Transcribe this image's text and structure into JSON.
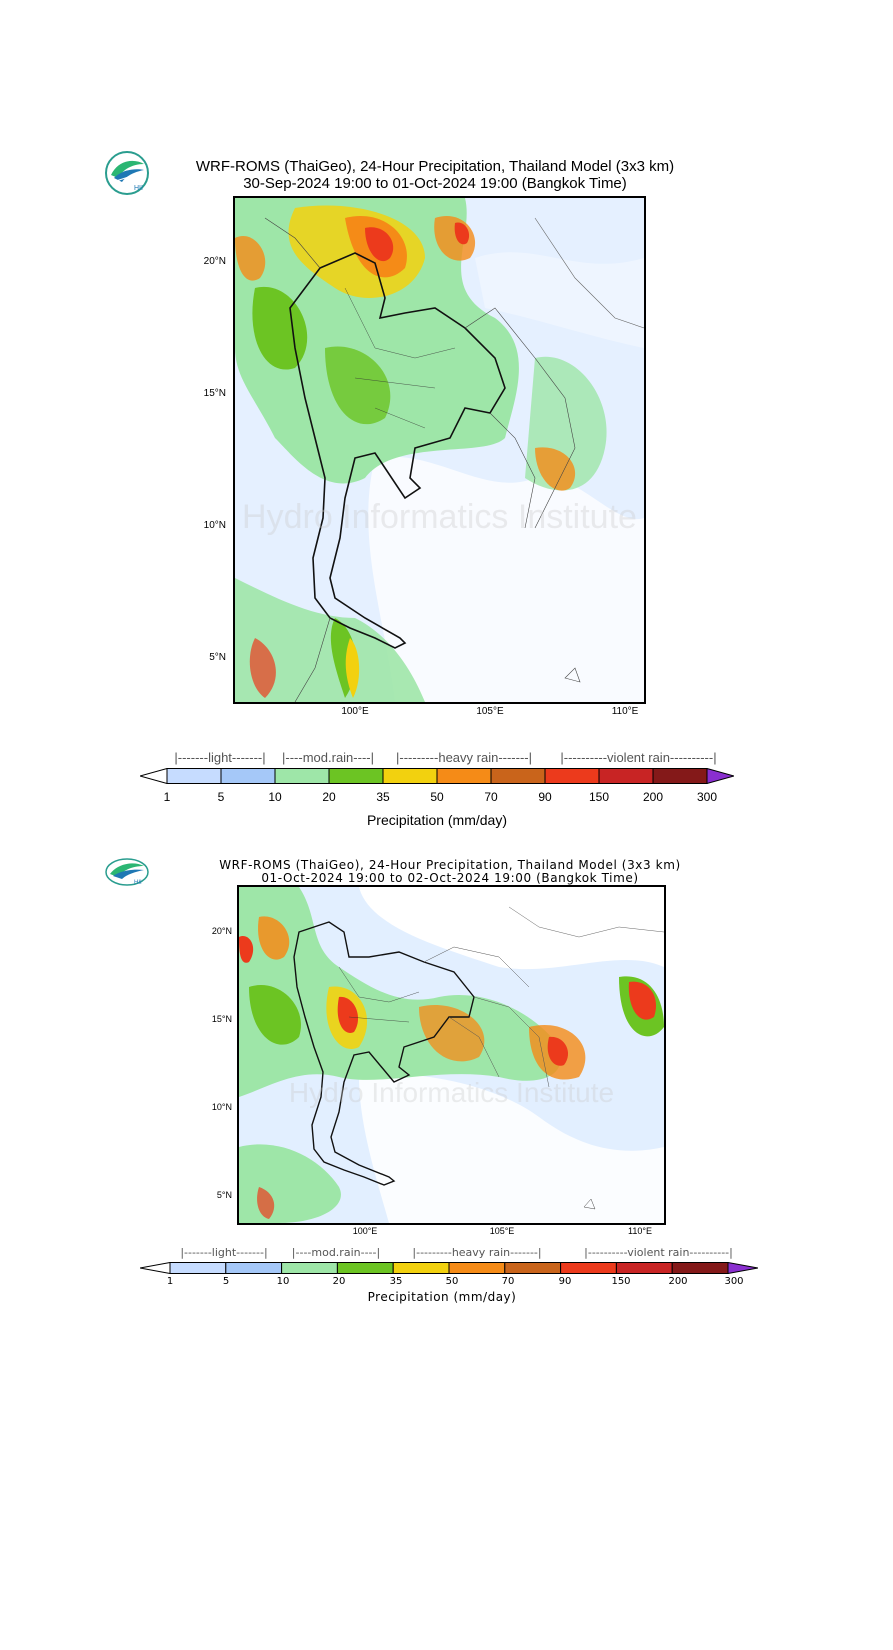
{
  "maps": [
    {
      "title_line1": "WRF-ROMS (ThaiGeo), 24-Hour Precipitation, Thailand Model (3x3 km)",
      "title_line2": "30-Sep-2024 19:00 to 01-Oct-2024 19:00 (Bangkok Time)",
      "lat_labels": [
        "20°N",
        "15°N",
        "10°N",
        "5°N"
      ],
      "lon_labels": [
        "100°E",
        "105°E",
        "110°E"
      ]
    },
    {
      "title_line1": "WRF-ROMS (ThaiGeo), 24-Hour Precipitation, Thailand Model (3x3 km)",
      "title_line2": "01-Oct-2024 19:00 to 02-Oct-2024 19:00 (Bangkok Time)",
      "lat_labels": [
        "20°N",
        "15°N",
        "10°N",
        "5°N"
      ],
      "lon_labels": [
        "100°E",
        "105°E",
        "110°E"
      ]
    }
  ],
  "logo_text": "HII",
  "watermark_text": "Hydro Informatics Institute",
  "legend": {
    "categories": [
      "|-------light-------|",
      "|----mod.rain----|",
      "|---------heavy rain-------|",
      "|----------violent rain----------|"
    ],
    "ticks": [
      "1",
      "5",
      "10",
      "20",
      "35",
      "50",
      "70",
      "90",
      "150",
      "200",
      "300"
    ],
    "colors": [
      "#c6dcff",
      "#a5c8f8",
      "#9ee6a8",
      "#6cc423",
      "#f2d10f",
      "#f58b17",
      "#c9641b",
      "#ec3a1c",
      "#c82424",
      "#841919"
    ],
    "under_color": "#ffffff",
    "over_color": "#8a2fcf",
    "label": "Precipitation (mm/day)"
  }
}
